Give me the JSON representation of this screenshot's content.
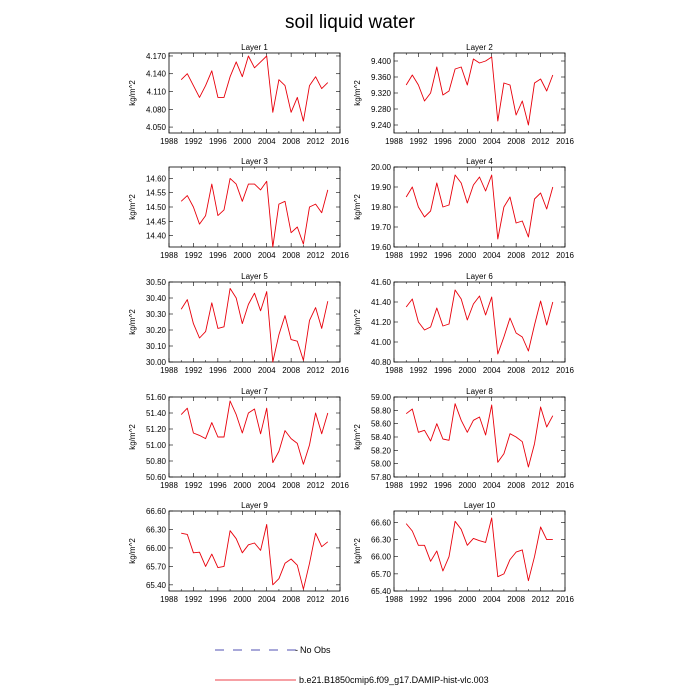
{
  "title": "soil liquid water",
  "legend": {
    "no_obs_label": "No Obs",
    "model_label": "b.e21.B1850cmip6.f09_g17.DAMIP-hist-vlc.003",
    "model_color": "#e8000b",
    "no_obs_color": "#1a1a9a"
  },
  "chart_data": [
    {
      "type": "line",
      "title": "Layer 1",
      "ylabel": "kg/m^2",
      "xlim": [
        1988,
        2016
      ],
      "xticks": [
        1988,
        1992,
        1996,
        2000,
        2004,
        2008,
        2012,
        2016
      ],
      "ylim": [
        4.04,
        4.175
      ],
      "yticks": [
        4.05,
        4.08,
        4.11,
        4.14,
        4.17
      ],
      "ydecimals": 3,
      "x": [
        1990,
        1991,
        1992,
        1993,
        1994,
        1995,
        1996,
        1997,
        1998,
        1999,
        2000,
        2001,
        2002,
        2003,
        2004,
        2005,
        2006,
        2007,
        2008,
        2009,
        2010,
        2011,
        2012,
        2013,
        2014
      ],
      "series": [
        {
          "color": "#e8000b",
          "values": [
            4.13,
            4.14,
            4.12,
            4.1,
            4.12,
            4.145,
            4.1,
            4.1,
            4.135,
            4.16,
            4.135,
            4.17,
            4.15,
            4.16,
            4.17,
            4.075,
            4.13,
            4.12,
            4.075,
            4.1,
            4.06,
            4.12,
            4.135,
            4.115,
            4.125
          ]
        }
      ]
    },
    {
      "type": "line",
      "title": "Layer 2",
      "ylabel": "kg/m^2",
      "xlim": [
        1988,
        2016
      ],
      "xticks": [
        1988,
        1992,
        1996,
        2000,
        2004,
        2008,
        2012,
        2016
      ],
      "ylim": [
        9.22,
        9.42
      ],
      "yticks": [
        9.24,
        9.28,
        9.32,
        9.36,
        9.4
      ],
      "ydecimals": 3,
      "x": [
        1990,
        1991,
        1992,
        1993,
        1994,
        1995,
        1996,
        1997,
        1998,
        1999,
        2000,
        2001,
        2002,
        2003,
        2004,
        2005,
        2006,
        2007,
        2008,
        2009,
        2010,
        2011,
        2012,
        2013,
        2014
      ],
      "series": [
        {
          "color": "#e8000b",
          "values": [
            9.34,
            9.365,
            9.34,
            9.3,
            9.32,
            9.385,
            9.315,
            9.325,
            9.38,
            9.385,
            9.34,
            9.405,
            9.395,
            9.4,
            9.41,
            9.25,
            9.345,
            9.34,
            9.265,
            9.3,
            9.24,
            9.345,
            9.355,
            9.325,
            9.365
          ]
        }
      ]
    },
    {
      "type": "line",
      "title": "Layer 3",
      "ylabel": "kg/m^2",
      "xlim": [
        1988,
        2016
      ],
      "xticks": [
        1988,
        1992,
        1996,
        2000,
        2004,
        2008,
        2012,
        2016
      ],
      "ylim": [
        14.36,
        14.64
      ],
      "yticks": [
        14.4,
        14.45,
        14.5,
        14.55,
        14.6
      ],
      "ydecimals": 2,
      "x": [
        1990,
        1991,
        1992,
        1993,
        1994,
        1995,
        1996,
        1997,
        1998,
        1999,
        2000,
        2001,
        2002,
        2003,
        2004,
        2005,
        2006,
        2007,
        2008,
        2009,
        2010,
        2011,
        2012,
        2013,
        2014
      ],
      "series": [
        {
          "color": "#e8000b",
          "values": [
            14.52,
            14.54,
            14.5,
            14.44,
            14.47,
            14.58,
            14.47,
            14.49,
            14.6,
            14.58,
            14.52,
            14.58,
            14.58,
            14.56,
            14.59,
            14.36,
            14.51,
            14.52,
            14.41,
            14.43,
            14.37,
            14.5,
            14.51,
            14.48,
            14.56
          ]
        }
      ]
    },
    {
      "type": "line",
      "title": "Layer 4",
      "ylabel": "kg/m^2",
      "xlim": [
        1988,
        2016
      ],
      "xticks": [
        1988,
        1992,
        1996,
        2000,
        2004,
        2008,
        2012,
        2016
      ],
      "ylim": [
        19.6,
        20.0
      ],
      "yticks": [
        19.6,
        19.7,
        19.8,
        19.9,
        20.0
      ],
      "ydecimals": 2,
      "x": [
        1990,
        1991,
        1992,
        1993,
        1994,
        1995,
        1996,
        1997,
        1998,
        1999,
        2000,
        2001,
        2002,
        2003,
        2004,
        2005,
        2006,
        2007,
        2008,
        2009,
        2010,
        2011,
        2012,
        2013,
        2014
      ],
      "series": [
        {
          "color": "#e8000b",
          "values": [
            19.85,
            19.9,
            19.8,
            19.75,
            19.78,
            19.92,
            19.8,
            19.81,
            19.96,
            19.92,
            19.82,
            19.91,
            19.95,
            19.88,
            19.96,
            19.64,
            19.8,
            19.85,
            19.72,
            19.73,
            19.65,
            19.84,
            19.87,
            19.79,
            19.9
          ]
        }
      ]
    },
    {
      "type": "line",
      "title": "Layer 5",
      "ylabel": "kg/m^2",
      "xlim": [
        1988,
        2016
      ],
      "xticks": [
        1988,
        1992,
        1996,
        2000,
        2004,
        2008,
        2012,
        2016
      ],
      "ylim": [
        30.0,
        30.5
      ],
      "yticks": [
        30.0,
        30.1,
        30.2,
        30.3,
        30.4,
        30.5
      ],
      "ydecimals": 2,
      "x": [
        1990,
        1991,
        1992,
        1993,
        1994,
        1995,
        1996,
        1997,
        1998,
        1999,
        2000,
        2001,
        2002,
        2003,
        2004,
        2005,
        2006,
        2007,
        2008,
        2009,
        2010,
        2011,
        2012,
        2013,
        2014
      ],
      "series": [
        {
          "color": "#e8000b",
          "values": [
            30.33,
            30.39,
            30.24,
            30.15,
            30.19,
            30.37,
            30.21,
            30.22,
            30.46,
            30.4,
            30.24,
            30.36,
            30.43,
            30.32,
            30.44,
            30.0,
            30.17,
            30.29,
            30.14,
            30.13,
            30.01,
            30.26,
            30.34,
            30.21,
            30.38
          ]
        }
      ]
    },
    {
      "type": "line",
      "title": "Layer 6",
      "ylabel": "kg/m^2",
      "xlim": [
        1988,
        2016
      ],
      "xticks": [
        1988,
        1992,
        1996,
        2000,
        2004,
        2008,
        2012,
        2016
      ],
      "ylim": [
        40.8,
        41.6
      ],
      "yticks": [
        40.8,
        41.0,
        41.2,
        41.4,
        41.6
      ],
      "ydecimals": 2,
      "x": [
        1990,
        1991,
        1992,
        1993,
        1994,
        1995,
        1996,
        1997,
        1998,
        1999,
        2000,
        2001,
        2002,
        2003,
        2004,
        2005,
        2006,
        2007,
        2008,
        2009,
        2010,
        2011,
        2012,
        2013,
        2014
      ],
      "series": [
        {
          "color": "#e8000b",
          "values": [
            41.35,
            41.43,
            41.2,
            41.12,
            41.15,
            41.34,
            41.16,
            41.18,
            41.52,
            41.43,
            41.22,
            41.38,
            41.46,
            41.27,
            41.45,
            40.88,
            41.05,
            41.24,
            41.09,
            41.05,
            40.91,
            41.17,
            41.41,
            41.17,
            41.4
          ]
        }
      ]
    },
    {
      "type": "line",
      "title": "Layer 7",
      "ylabel": "kg/m^2",
      "xlim": [
        1988,
        2016
      ],
      "xticks": [
        1988,
        1992,
        1996,
        2000,
        2004,
        2008,
        2012,
        2016
      ],
      "ylim": [
        50.6,
        51.6
      ],
      "yticks": [
        50.6,
        50.8,
        51.0,
        51.2,
        51.4,
        51.6
      ],
      "ydecimals": 2,
      "x": [
        1990,
        1991,
        1992,
        1993,
        1994,
        1995,
        1996,
        1997,
        1998,
        1999,
        2000,
        2001,
        2002,
        2003,
        2004,
        2005,
        2006,
        2007,
        2008,
        2009,
        2010,
        2011,
        2012,
        2013,
        2014
      ],
      "series": [
        {
          "color": "#e8000b",
          "values": [
            51.38,
            51.46,
            51.15,
            51.12,
            51.08,
            51.28,
            51.1,
            51.1,
            51.55,
            51.38,
            51.15,
            51.4,
            51.45,
            51.14,
            51.46,
            50.78,
            50.92,
            51.18,
            51.08,
            51.02,
            50.76,
            51.0,
            51.4,
            51.14,
            51.4
          ]
        }
      ]
    },
    {
      "type": "line",
      "title": "Layer 8",
      "ylabel": "kg/m^2",
      "xlim": [
        1988,
        2016
      ],
      "xticks": [
        1988,
        1992,
        1996,
        2000,
        2004,
        2008,
        2012,
        2016
      ],
      "ylim": [
        57.8,
        59.0
      ],
      "yticks": [
        57.8,
        58.0,
        58.2,
        58.4,
        58.6,
        58.8,
        59.0
      ],
      "ydecimals": 2,
      "x": [
        1990,
        1991,
        1992,
        1993,
        1994,
        1995,
        1996,
        1997,
        1998,
        1999,
        2000,
        2001,
        2002,
        2003,
        2004,
        2005,
        2006,
        2007,
        2008,
        2009,
        2010,
        2011,
        2012,
        2013,
        2014
      ],
      "series": [
        {
          "color": "#e8000b",
          "values": [
            58.75,
            58.82,
            58.47,
            58.5,
            58.34,
            58.6,
            58.37,
            58.35,
            58.9,
            58.65,
            58.47,
            58.65,
            58.7,
            58.43,
            58.88,
            58.02,
            58.15,
            58.45,
            58.4,
            58.33,
            57.95,
            58.3,
            58.85,
            58.55,
            58.72
          ]
        }
      ]
    },
    {
      "type": "line",
      "title": "Layer 9",
      "ylabel": "kg/m^2",
      "xlim": [
        1988,
        2016
      ],
      "xticks": [
        1988,
        1992,
        1996,
        2000,
        2004,
        2008,
        2012,
        2016
      ],
      "ylim": [
        65.3,
        66.6
      ],
      "yticks": [
        65.4,
        65.7,
        66.0,
        66.3,
        66.6
      ],
      "ydecimals": 2,
      "x": [
        1990,
        1991,
        1992,
        1993,
        1994,
        1995,
        1996,
        1997,
        1998,
        1999,
        2000,
        2001,
        2002,
        2003,
        2004,
        2005,
        2006,
        2007,
        2008,
        2009,
        2010,
        2011,
        2012,
        2013,
        2014
      ],
      "series": [
        {
          "color": "#e8000b",
          "values": [
            66.24,
            66.22,
            65.92,
            65.93,
            65.7,
            65.9,
            65.68,
            65.7,
            66.28,
            66.15,
            65.92,
            66.05,
            66.08,
            65.96,
            66.38,
            65.4,
            65.5,
            65.75,
            65.82,
            65.72,
            65.33,
            65.75,
            66.24,
            66.02,
            66.1
          ]
        }
      ]
    },
    {
      "type": "line",
      "title": "Layer 10",
      "ylabel": "kg/m^2",
      "xlim": [
        1988,
        2016
      ],
      "xticks": [
        1988,
        1992,
        1996,
        2000,
        2004,
        2008,
        2012,
        2016
      ],
      "ylim": [
        65.4,
        66.8
      ],
      "yticks": [
        65.4,
        65.7,
        66.0,
        66.3,
        66.6
      ],
      "ydecimals": 2,
      "x": [
        1990,
        1991,
        1992,
        1993,
        1994,
        1995,
        1996,
        1997,
        1998,
        1999,
        2000,
        2001,
        2002,
        2003,
        2004,
        2005,
        2006,
        2007,
        2008,
        2009,
        2010,
        2011,
        2012,
        2013,
        2014
      ],
      "series": [
        {
          "color": "#e8000b",
          "values": [
            66.58,
            66.45,
            66.2,
            66.2,
            65.92,
            66.1,
            65.75,
            66.0,
            66.62,
            66.48,
            66.2,
            66.32,
            66.28,
            66.25,
            66.68,
            65.65,
            65.7,
            65.95,
            66.08,
            66.12,
            65.58,
            66.0,
            66.52,
            66.3,
            66.3
          ]
        }
      ]
    }
  ]
}
